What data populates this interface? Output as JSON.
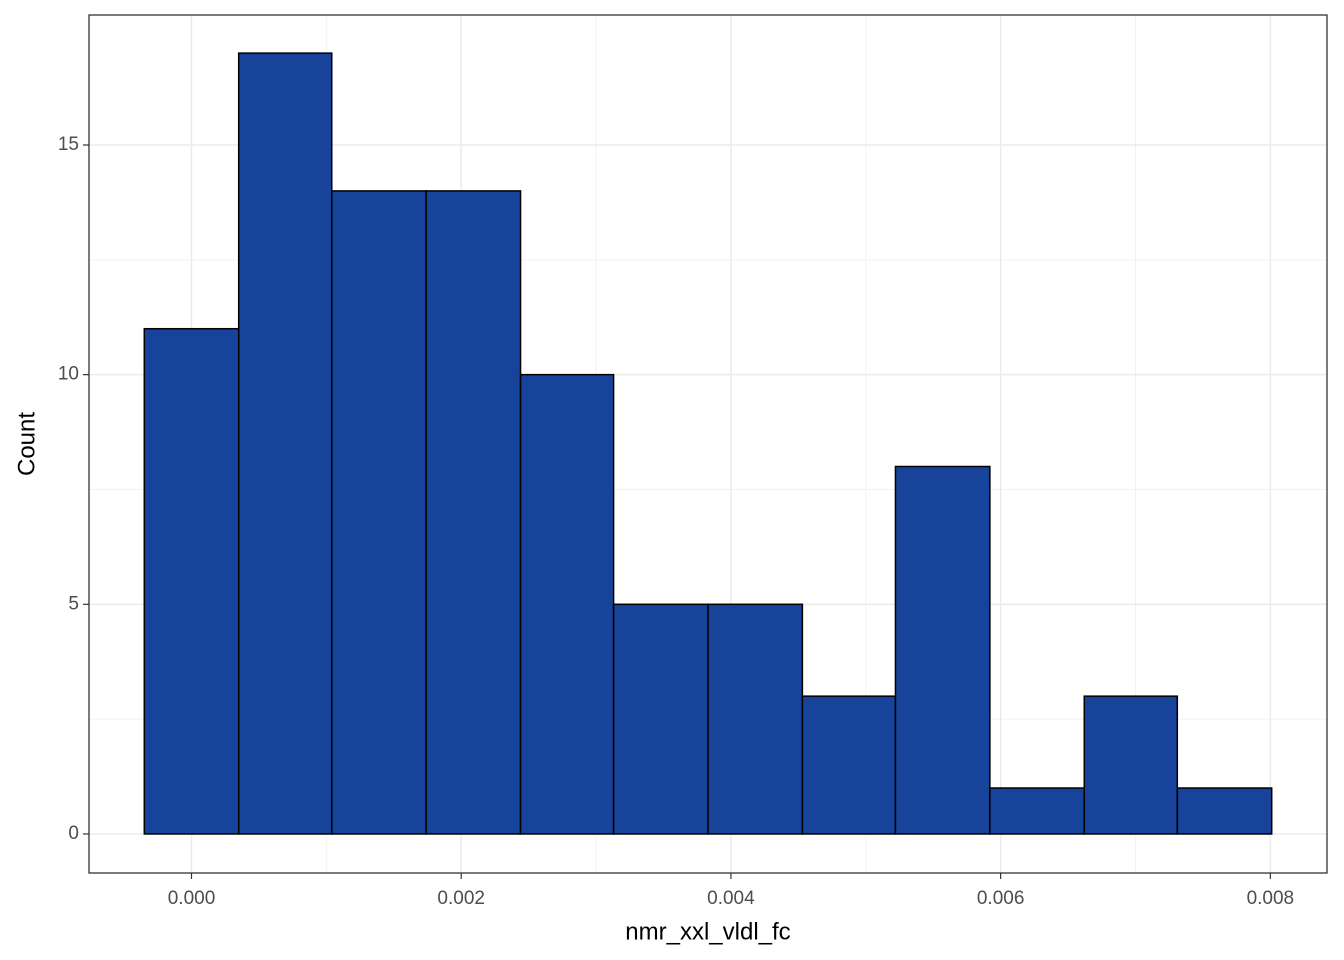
{
  "chart_data": {
    "type": "histogram",
    "x_label": "nmr_xxl_vldl_fc",
    "y_label": "Count",
    "bins": [
      -0.00035,
      0.00035,
      0.00104,
      0.00174,
      0.00244,
      0.00313,
      0.00383,
      0.00453,
      0.00522,
      0.00592,
      0.00662,
      0.00731,
      0.00801
    ],
    "values": [
      11,
      17,
      14,
      14,
      10,
      5,
      5,
      3,
      8,
      1,
      3,
      1
    ],
    "color": "#18439a",
    "xlim": [
      -0.00076,
      0.00842
    ],
    "ylim": [
      -0.85,
      17.83
    ],
    "xticks": [
      {
        "value": 0,
        "label": "0.000"
      },
      {
        "value": 0.002,
        "label": "0.002"
      },
      {
        "value": 0.004,
        "label": "0.004"
      },
      {
        "value": 0.006,
        "label": "0.006"
      },
      {
        "value": 0.008,
        "label": "0.008"
      }
    ],
    "yticks": [
      0,
      5,
      10,
      15
    ],
    "grid": true
  }
}
